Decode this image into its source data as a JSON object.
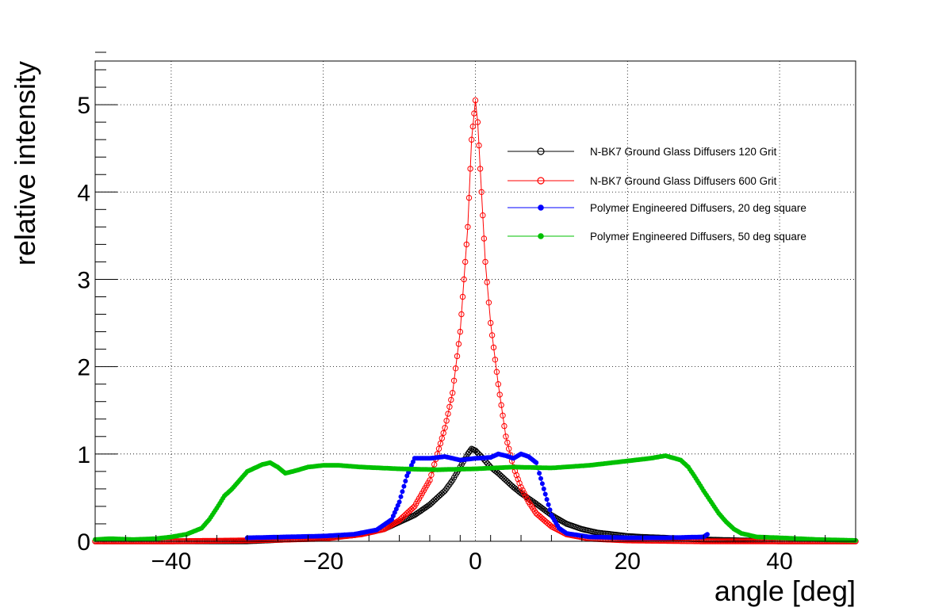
{
  "chart_data": {
    "type": "line",
    "title": "",
    "xlabel": "angle [deg]",
    "ylabel": "relative intensity",
    "xlim": [
      -50,
      50
    ],
    "ylim": [
      0,
      5.5
    ],
    "x_ticks": [
      -40,
      -20,
      0,
      20,
      40
    ],
    "x_tick_labels": [
      "−40",
      "−20",
      "0",
      "20",
      "40"
    ],
    "y_ticks": [
      0,
      1,
      2,
      3,
      4,
      5
    ],
    "y_tick_labels": [
      "0",
      "1",
      "2",
      "3",
      "4",
      "5"
    ],
    "grid": true,
    "legend_position": "top-right",
    "series": [
      {
        "name": "N-BK7 Ground Glass Diffusers 120 Grit",
        "color": "#000000",
        "marker": "open-circle",
        "points": [
          [
            -50,
            0.0
          ],
          [
            -40,
            0.0
          ],
          [
            -30,
            0.0
          ],
          [
            -25,
            0.02
          ],
          [
            -20,
            0.04
          ],
          [
            -16,
            0.07
          ],
          [
            -14,
            0.1
          ],
          [
            -12,
            0.14
          ],
          [
            -10,
            0.22
          ],
          [
            -8,
            0.3
          ],
          [
            -6,
            0.42
          ],
          [
            -4,
            0.58
          ],
          [
            -3,
            0.7
          ],
          [
            -2,
            0.85
          ],
          [
            -1,
            1.0
          ],
          [
            -0.5,
            1.06
          ],
          [
            0,
            1.04
          ],
          [
            1,
            0.95
          ],
          [
            2,
            0.85
          ],
          [
            3,
            0.78
          ],
          [
            4,
            0.7
          ],
          [
            5,
            0.62
          ],
          [
            6,
            0.55
          ],
          [
            8,
            0.43
          ],
          [
            10,
            0.3
          ],
          [
            12,
            0.2
          ],
          [
            14,
            0.14
          ],
          [
            16,
            0.1
          ],
          [
            18,
            0.08
          ],
          [
            20,
            0.06
          ],
          [
            22,
            0.05
          ],
          [
            25,
            0.04
          ],
          [
            30,
            0.02
          ],
          [
            35,
            0.01
          ],
          [
            40,
            0.0
          ],
          [
            50,
            0.0
          ]
        ]
      },
      {
        "name": "N-BK7 Ground Glass Diffusers 600 Grit",
        "color": "#ff0000",
        "marker": "open-circle",
        "points": [
          [
            -50,
            0.0
          ],
          [
            -40,
            0.0
          ],
          [
            -30,
            0.01
          ],
          [
            -20,
            0.03
          ],
          [
            -15,
            0.08
          ],
          [
            -12,
            0.14
          ],
          [
            -10,
            0.24
          ],
          [
            -8,
            0.4
          ],
          [
            -6,
            0.7
          ],
          [
            -5,
            1.0
          ],
          [
            -4,
            1.3
          ],
          [
            -3,
            1.7
          ],
          [
            -2,
            2.4
          ],
          [
            -1.5,
            3.0
          ],
          [
            -1,
            3.6
          ],
          [
            -0.5,
            4.6
          ],
          [
            0,
            5.05
          ],
          [
            0.3,
            4.8
          ],
          [
            0.8,
            4.0
          ],
          [
            1.3,
            3.2
          ],
          [
            2,
            2.5
          ],
          [
            3,
            1.8
          ],
          [
            4,
            1.2
          ],
          [
            5,
            0.85
          ],
          [
            6,
            0.62
          ],
          [
            7,
            0.45
          ],
          [
            8,
            0.32
          ],
          [
            10,
            0.17
          ],
          [
            12,
            0.08
          ],
          [
            15,
            0.03
          ],
          [
            20,
            0.01
          ],
          [
            30,
            0.0
          ],
          [
            40,
            0.0
          ],
          [
            50,
            0.0
          ]
        ]
      },
      {
        "name": "Polymer Engineered Diffusers, 20 deg square",
        "color": "#0000ff",
        "marker": "filled-circle",
        "points": [
          [
            -30,
            0.04
          ],
          [
            -25,
            0.05
          ],
          [
            -20,
            0.06
          ],
          [
            -16,
            0.08
          ],
          [
            -13,
            0.13
          ],
          [
            -11,
            0.25
          ],
          [
            -10,
            0.45
          ],
          [
            -9,
            0.75
          ],
          [
            -8,
            0.95
          ],
          [
            -6,
            0.95
          ],
          [
            -4,
            0.97
          ],
          [
            -2,
            0.93
          ],
          [
            0,
            0.95
          ],
          [
            2,
            0.96
          ],
          [
            3,
            1.0
          ],
          [
            4,
            0.98
          ],
          [
            5,
            0.95
          ],
          [
            6,
            1.0
          ],
          [
            7,
            0.97
          ],
          [
            8,
            0.9
          ],
          [
            9,
            0.6
          ],
          [
            10,
            0.3
          ],
          [
            11,
            0.15
          ],
          [
            12,
            0.09
          ],
          [
            15,
            0.05
          ],
          [
            20,
            0.04
          ],
          [
            25,
            0.04
          ],
          [
            30,
            0.05
          ],
          [
            30.5,
            0.08
          ]
        ]
      },
      {
        "name": "Polymer Engineered Diffusers, 50 deg square",
        "color": "#00c000",
        "marker": "filled-circle",
        "points": [
          [
            -50,
            0.02
          ],
          [
            -48,
            0.03
          ],
          [
            -45,
            0.02
          ],
          [
            -42,
            0.03
          ],
          [
            -40,
            0.05
          ],
          [
            -38,
            0.08
          ],
          [
            -36,
            0.15
          ],
          [
            -35,
            0.25
          ],
          [
            -34,
            0.38
          ],
          [
            -33,
            0.52
          ],
          [
            -32,
            0.6
          ],
          [
            -31,
            0.7
          ],
          [
            -30,
            0.8
          ],
          [
            -28,
            0.88
          ],
          [
            -27,
            0.9
          ],
          [
            -26,
            0.85
          ],
          [
            -25,
            0.78
          ],
          [
            -24,
            0.8
          ],
          [
            -22,
            0.85
          ],
          [
            -20,
            0.87
          ],
          [
            -18,
            0.87
          ],
          [
            -15,
            0.85
          ],
          [
            -10,
            0.83
          ],
          [
            -5,
            0.82
          ],
          [
            0,
            0.83
          ],
          [
            5,
            0.85
          ],
          [
            10,
            0.84
          ],
          [
            15,
            0.87
          ],
          [
            20,
            0.92
          ],
          [
            23,
            0.95
          ],
          [
            25,
            0.98
          ],
          [
            27,
            0.93
          ],
          [
            28,
            0.85
          ],
          [
            29,
            0.72
          ],
          [
            30,
            0.58
          ],
          [
            31,
            0.45
          ],
          [
            32,
            0.32
          ],
          [
            33,
            0.22
          ],
          [
            34,
            0.14
          ],
          [
            35,
            0.09
          ],
          [
            37,
            0.05
          ],
          [
            40,
            0.04
          ],
          [
            45,
            0.02
          ],
          [
            50,
            0.01
          ]
        ]
      }
    ]
  }
}
